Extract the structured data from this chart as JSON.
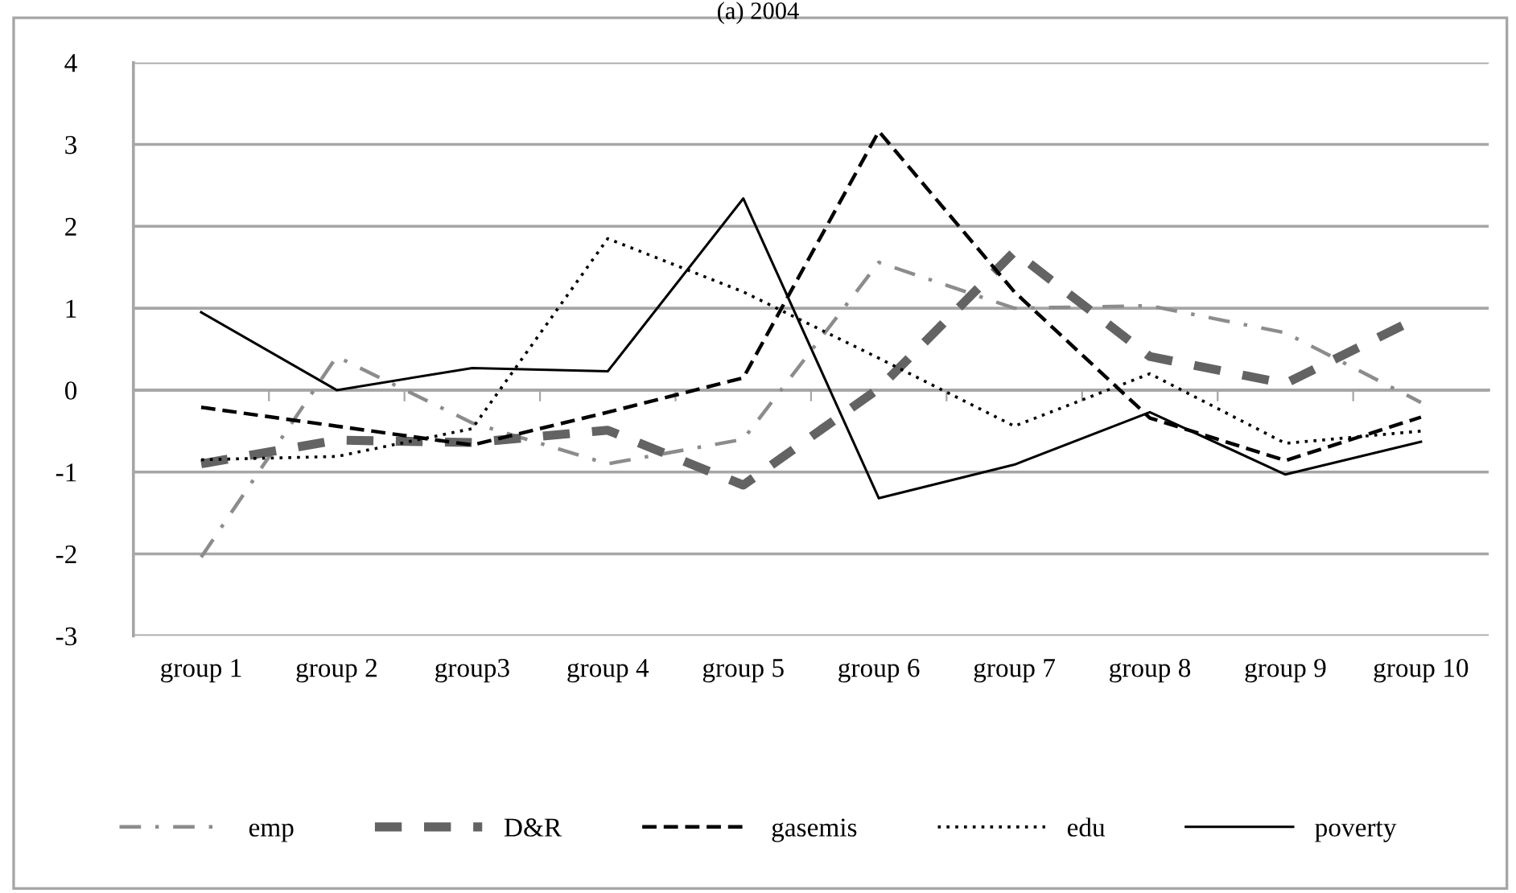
{
  "chart_data": {
    "type": "line",
    "title": "(a) 2004",
    "categories": [
      "group 1",
      "group 2",
      "group3",
      "group 4",
      "group 5",
      "group 6",
      "group 7",
      "group 8",
      "group 9",
      "group 10"
    ],
    "series": [
      {
        "name": "emp",
        "color": "#8c8c8c",
        "line_style": "dashdot",
        "values": [
          -2.04,
          0.41,
          -0.4,
          -0.9,
          -0.6,
          1.56,
          1.0,
          1.03,
          0.7,
          -0.15
        ]
      },
      {
        "name": "D&R",
        "color": "#636363",
        "line_style": "longdash",
        "values": [
          -0.9,
          -0.61,
          -0.64,
          -0.49,
          -1.16,
          0.02,
          1.69,
          0.41,
          0.08,
          0.9
        ]
      },
      {
        "name": "gasemis",
        "color": "#000000",
        "line_style": "dashed",
        "values": [
          -0.21,
          -0.44,
          -0.67,
          -0.27,
          0.15,
          3.16,
          1.2,
          -0.34,
          -0.86,
          -0.33
        ]
      },
      {
        "name": "edu",
        "color": "#000000",
        "line_style": "dotted",
        "values": [
          -0.85,
          -0.81,
          -0.47,
          1.85,
          1.2,
          0.39,
          -0.44,
          0.2,
          -0.65,
          -0.5
        ]
      },
      {
        "name": "poverty",
        "color": "#000000",
        "line_style": "solid",
        "values": [
          0.95,
          0.0,
          0.27,
          0.23,
          2.34,
          -1.32,
          -0.91,
          -0.27,
          -1.03,
          -0.63
        ]
      }
    ],
    "ylim": [
      -3,
      4
    ],
    "yticks": [
      -3,
      -2,
      -1,
      0,
      1,
      2,
      3,
      4
    ],
    "grid": "y",
    "legend": "bottom",
    "marker": "none"
  }
}
